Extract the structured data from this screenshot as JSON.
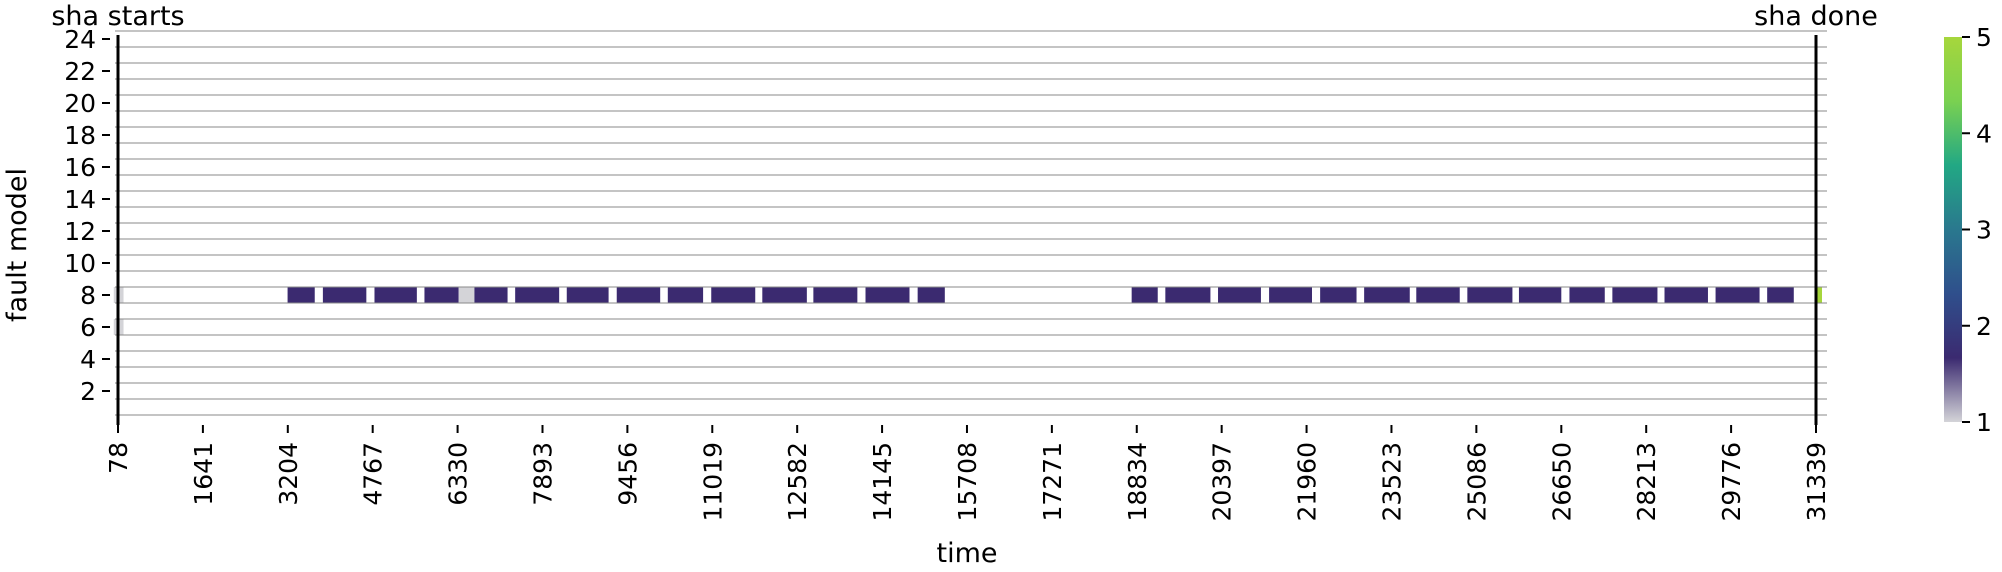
{
  "chart_data": {
    "type": "heatmap",
    "xlabel": "time",
    "ylabel": "fault model",
    "xlim": [
      0,
      31339
    ],
    "ylim": [
      0,
      24
    ],
    "x_ticks": [
      "78",
      "1641",
      "3204",
      "4767",
      "6330",
      "7893",
      "9456",
      "11019",
      "12582",
      "14145",
      "15708",
      "17271",
      "18834",
      "20397",
      "21960",
      "23523",
      "25086",
      "26650",
      "28213",
      "29776",
      "31339"
    ],
    "y_ticks": [
      "2",
      "4",
      "6",
      "8",
      "10",
      "12",
      "14",
      "16",
      "18",
      "20",
      "22",
      "24"
    ],
    "grid": "horizontal lines between rows",
    "markers": [
      {
        "label": "sha starts",
        "x": 78
      },
      {
        "label": "sha done",
        "x": 31339
      }
    ],
    "colorbar": {
      "ticks": [
        "1",
        "2",
        "3",
        "4",
        "5"
      ],
      "min": 1,
      "max": 5,
      "colors": [
        "#d4d4d8",
        "#3b2a70",
        "#2f4f8c",
        "#2a788e",
        "#22a884",
        "#7ad151",
        "#a6d63c"
      ]
    },
    "cells": [
      {
        "x0": 0,
        "x1": 180,
        "row": 8,
        "value": 1
      },
      {
        "x0": 0,
        "x1": 180,
        "row": 6,
        "value": 1
      },
      {
        "x0": 3200,
        "x1": 3700,
        "row": 8,
        "value": 2
      },
      {
        "x0": 3850,
        "x1": 4650,
        "row": 8,
        "value": 2
      },
      {
        "x0": 4800,
        "x1": 5580,
        "row": 8,
        "value": 2
      },
      {
        "x0": 5720,
        "x1": 6350,
        "row": 8,
        "value": 2
      },
      {
        "x0": 6350,
        "x1": 6640,
        "row": 8,
        "value": 1
      },
      {
        "x0": 6640,
        "x1": 7250,
        "row": 8,
        "value": 2
      },
      {
        "x0": 7390,
        "x1": 8200,
        "row": 8,
        "value": 2
      },
      {
        "x0": 8340,
        "x1": 9110,
        "row": 8,
        "value": 2
      },
      {
        "x0": 9260,
        "x1": 10060,
        "row": 8,
        "value": 2
      },
      {
        "x0": 10200,
        "x1": 10850,
        "row": 8,
        "value": 2
      },
      {
        "x0": 11000,
        "x1": 11810,
        "row": 8,
        "value": 2
      },
      {
        "x0": 11940,
        "x1": 12760,
        "row": 8,
        "value": 2
      },
      {
        "x0": 12880,
        "x1": 13690,
        "row": 8,
        "value": 2
      },
      {
        "x0": 13840,
        "x1": 14650,
        "row": 8,
        "value": 2
      },
      {
        "x0": 14800,
        "x1": 15300,
        "row": 8,
        "value": 2
      },
      {
        "x0": 18740,
        "x1": 19220,
        "row": 8,
        "value": 2
      },
      {
        "x0": 19360,
        "x1": 20190,
        "row": 8,
        "value": 2
      },
      {
        "x0": 20330,
        "x1": 21120,
        "row": 8,
        "value": 2
      },
      {
        "x0": 21270,
        "x1": 22060,
        "row": 8,
        "value": 2
      },
      {
        "x0": 22210,
        "x1": 22880,
        "row": 8,
        "value": 2
      },
      {
        "x0": 23020,
        "x1": 23860,
        "row": 8,
        "value": 2
      },
      {
        "x0": 23980,
        "x1": 24780,
        "row": 8,
        "value": 2
      },
      {
        "x0": 24920,
        "x1": 25750,
        "row": 8,
        "value": 2
      },
      {
        "x0": 25870,
        "x1": 26650,
        "row": 8,
        "value": 2
      },
      {
        "x0": 26800,
        "x1": 27450,
        "row": 8,
        "value": 2
      },
      {
        "x0": 27590,
        "x1": 28420,
        "row": 8,
        "value": 2
      },
      {
        "x0": 28550,
        "x1": 29350,
        "row": 8,
        "value": 2
      },
      {
        "x0": 29490,
        "x1": 30300,
        "row": 8,
        "value": 2
      },
      {
        "x0": 30440,
        "x1": 30930,
        "row": 8,
        "value": 2
      },
      {
        "x0": 31339,
        "x1": 31500,
        "row": 8,
        "value": 5
      }
    ]
  }
}
